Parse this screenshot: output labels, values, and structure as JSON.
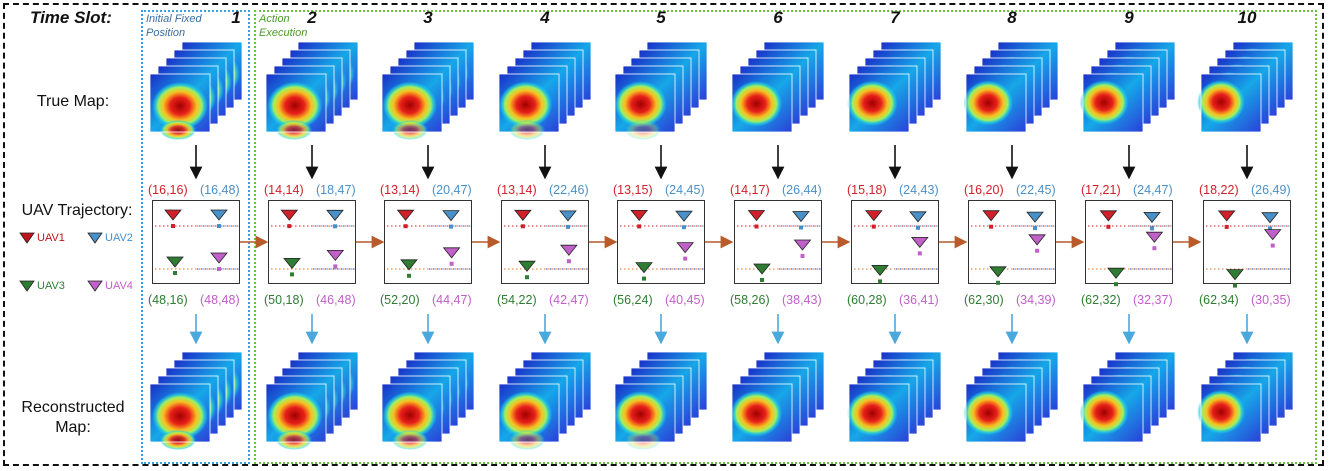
{
  "header": {
    "time_slot_label": "Time Slot:"
  },
  "phase_notes": {
    "initial": "Initial Fixed Position",
    "action": "Action Execution"
  },
  "row_labels": {
    "true_map": "True Map:",
    "trajectory": "UAV Trajectory:",
    "reconstructed_map": "Reconstructed Map:"
  },
  "legend": [
    {
      "label": "UAV1",
      "color": "#c0141c"
    },
    {
      "label": "UAV2",
      "color": "#4a90c8"
    },
    {
      "label": "UAV3",
      "color": "#2e7d32"
    },
    {
      "label": "UAV4",
      "color": "#c060c8"
    }
  ],
  "slots": [
    {
      "number": "1",
      "uav1": "(16,16)",
      "uav2": "(16,48)",
      "uav3": "(48,16)",
      "uav4": "(48,48)"
    },
    {
      "number": "2",
      "uav1": "(14,14)",
      "uav2": "(18,47)",
      "uav3": "(50,18)",
      "uav4": "(46,48)"
    },
    {
      "number": "3",
      "uav1": "(13,14)",
      "uav2": "(20,47)",
      "uav3": "(52,20)",
      "uav4": "(44,47)"
    },
    {
      "number": "4",
      "uav1": "(13,14)",
      "uav2": "(22,46)",
      "uav3": "(54,22)",
      "uav4": "(42,47)"
    },
    {
      "number": "5",
      "uav1": "(13,15)",
      "uav2": "(24,45)",
      "uav3": "(56,24)",
      "uav4": "(40,45)"
    },
    {
      "number": "6",
      "uav1": "(14,17)",
      "uav2": "(26,44)",
      "uav3": "(58,26)",
      "uav4": "(38,43)"
    },
    {
      "number": "7",
      "uav1": "(15,18)",
      "uav2": "(24,43)",
      "uav3": "(60,28)",
      "uav4": "(36,41)"
    },
    {
      "number": "8",
      "uav1": "(16,20)",
      "uav2": "(22,45)",
      "uav3": "(62,30)",
      "uav4": "(34,39)"
    },
    {
      "number": "9",
      "uav1": "(17,21)",
      "uav2": "(24,47)",
      "uav3": "(62,32)",
      "uav4": "(32,37)"
    },
    {
      "number": "10",
      "uav1": "(18,22)",
      "uav2": "(26,49)",
      "uav3": "(62,34)",
      "uav4": "(30,35)"
    }
  ],
  "colors": {
    "uav1": "#d0202a",
    "uav2": "#4a90c8",
    "uav3": "#2e7d32",
    "uav4": "#c060c8",
    "true_arrow": "#111111",
    "recon_arrow": "#4aa8dc",
    "traj_arrow": "#b85a2a"
  }
}
